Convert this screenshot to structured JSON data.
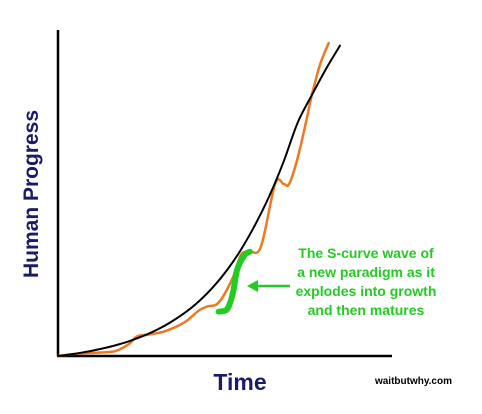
{
  "chart_data": {
    "type": "line",
    "xlabel": "Time",
    "ylabel": "Human Progress",
    "series": [
      {
        "role": "exponential-trend",
        "color": "#000000",
        "x": [
          0,
          0.05,
          0.1,
          0.15,
          0.2,
          0.25,
          0.3,
          0.35,
          0.4,
          0.45,
          0.5,
          0.55,
          0.6,
          0.65,
          0.7,
          0.75,
          0.8,
          0.85,
          0.9,
          0.95,
          1.0
        ],
        "y": [
          0.0,
          0.007,
          0.016,
          0.027,
          0.04,
          0.056,
          0.076,
          0.1,
          0.13,
          0.166,
          0.21,
          0.264,
          0.33,
          0.41,
          0.505,
          0.615,
          0.745,
          0.895,
          1.0,
          1.1,
          1.19
        ]
      },
      {
        "role": "paradigm-waves",
        "color": "#f07820",
        "x": [
          0,
          0.06,
          0.12,
          0.2,
          0.25,
          0.28,
          0.32,
          0.38,
          0.45,
          0.5,
          0.53,
          0.57,
          0.62,
          0.65,
          0.68,
          0.72,
          0.77,
          0.8,
          0.82,
          0.85,
          0.88,
          0.9,
          0.93,
          0.96
        ],
        "y": [
          0.0,
          0.008,
          0.012,
          0.018,
          0.045,
          0.075,
          0.082,
          0.095,
          0.13,
          0.175,
          0.19,
          0.205,
          0.3,
          0.39,
          0.4,
          0.42,
          0.66,
          0.66,
          0.66,
          0.76,
          0.9,
          1.0,
          1.12,
          1.2
        ]
      },
      {
        "role": "highlighted-s-curve",
        "color": "#22cc22",
        "x": [
          0.57,
          0.6,
          0.62,
          0.635,
          0.66,
          0.68
        ],
        "y": [
          0.17,
          0.18,
          0.24,
          0.33,
          0.385,
          0.4
        ]
      }
    ],
    "xlim": [
      0,
      1.0
    ],
    "ylim": [
      0,
      1.25
    ],
    "grid": false,
    "annotations": [
      {
        "lines": [
          "The S-curve wave of",
          "a new paradigm as it",
          "explodes into growth",
          "and then matures"
        ],
        "color": "#22cc22"
      }
    ]
  },
  "credit": "waitbutwhy.com",
  "colors": {
    "axis_label": "#1b1b6e",
    "axis_line": "#000000"
  }
}
